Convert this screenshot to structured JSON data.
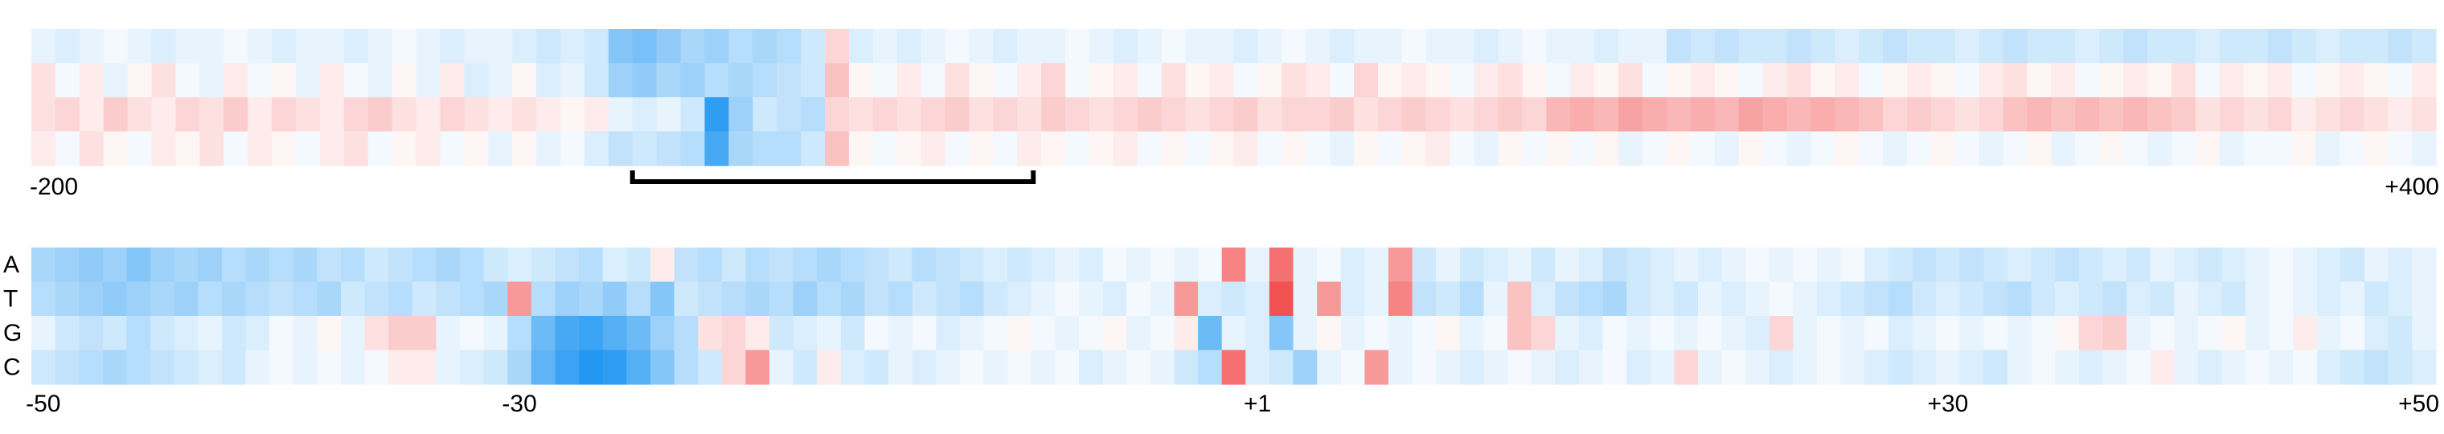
{
  "chart_data": [
    {
      "type": "heatmap",
      "xlim": [
        -200,
        400
      ],
      "xticks": [
        -200,
        {
          "value": 400,
          "label": "+400"
        }
      ],
      "zlim": [
        -1,
        1
      ],
      "colors": {
        "negative": "#0a8cf0",
        "positive": "#f03232"
      },
      "bracket": [
        -50,
        50
      ],
      "bins": [
        -200,
        -194,
        -188,
        -182,
        -176,
        -170,
        -164,
        -158,
        -152,
        -146,
        -140,
        -134,
        -128,
        -122,
        -116,
        -110,
        -104,
        -98,
        -92,
        -86,
        -80,
        -74,
        -68,
        -62,
        -56,
        -50,
        -44,
        -38,
        -32,
        -26,
        -20,
        -14,
        -8,
        -2,
        4,
        10,
        16,
        22,
        28,
        34,
        40,
        46,
        52,
        58,
        64,
        70,
        76,
        82,
        88,
        94,
        100,
        106,
        112,
        118,
        124,
        130,
        136,
        142,
        148,
        154,
        160,
        166,
        172,
        178,
        184,
        190,
        196,
        202,
        208,
        214,
        220,
        226,
        232,
        238,
        244,
        250,
        256,
        262,
        268,
        274,
        280,
        286,
        292,
        298,
        304,
        310,
        316,
        322,
        328,
        334,
        340,
        346,
        352,
        358,
        364,
        370,
        376,
        382,
        388,
        394,
        400
      ],
      "z": [
        [
          -0.1,
          -0.15,
          -0.1,
          -0.05,
          -0.1,
          -0.15,
          -0.1,
          -0.1,
          -0.05,
          -0.1,
          -0.15,
          -0.1,
          -0.1,
          -0.15,
          -0.1,
          -0.05,
          -0.1,
          -0.15,
          -0.1,
          -0.1,
          -0.15,
          -0.2,
          -0.15,
          -0.2,
          -0.5,
          -0.55,
          -0.45,
          -0.35,
          -0.4,
          -0.3,
          -0.35,
          -0.3,
          -0.2,
          0.2,
          -0.15,
          -0.1,
          -0.15,
          -0.1,
          -0.05,
          -0.1,
          -0.15,
          -0.1,
          -0.1,
          -0.05,
          -0.1,
          -0.15,
          -0.1,
          -0.05,
          -0.1,
          -0.1,
          -0.15,
          -0.1,
          -0.05,
          -0.1,
          -0.15,
          -0.1,
          -0.1,
          -0.05,
          -0.1,
          -0.1,
          -0.15,
          -0.1,
          -0.05,
          -0.1,
          -0.1,
          -0.15,
          -0.1,
          -0.1,
          -0.25,
          -0.2,
          -0.25,
          -0.2,
          -0.2,
          -0.25,
          -0.2,
          -0.15,
          -0.2,
          -0.25,
          -0.2,
          -0.2,
          -0.15,
          -0.2,
          -0.25,
          -0.2,
          -0.2,
          -0.15,
          -0.2,
          -0.25,
          -0.2,
          -0.2,
          -0.15,
          -0.2,
          -0.2,
          -0.25,
          -0.2,
          -0.15,
          -0.2,
          -0.2,
          -0.25,
          -0.2
        ],
        [
          0.15,
          -0.05,
          0.1,
          -0.1,
          0.05,
          0.15,
          -0.05,
          -0.1,
          0.1,
          -0.05,
          0.05,
          -0.1,
          0.1,
          -0.05,
          -0.1,
          0.05,
          -0.1,
          0.1,
          -0.15,
          -0.1,
          0.05,
          -0.15,
          -0.1,
          -0.2,
          -0.4,
          -0.45,
          -0.35,
          -0.4,
          -0.3,
          -0.35,
          -0.3,
          -0.25,
          -0.2,
          0.3,
          0.05,
          -0.05,
          0.1,
          -0.05,
          0.15,
          0.05,
          -0.05,
          0.1,
          0.2,
          -0.05,
          0.05,
          0.1,
          -0.05,
          0.15,
          0.05,
          0.1,
          -0.05,
          0.05,
          0.15,
          0.1,
          -0.05,
          0.2,
          0.05,
          0.1,
          0.05,
          -0.05,
          0.1,
          0.15,
          0.05,
          -0.05,
          0.1,
          0.05,
          0.15,
          -0.05,
          0.05,
          0.1,
          0.05,
          -0.05,
          0.1,
          0.15,
          0.05,
          0.1,
          -0.05,
          0.05,
          0.1,
          0.05,
          -0.05,
          0.1,
          0.15,
          0.05,
          0.1,
          -0.05,
          0.05,
          0.1,
          0.05,
          0.15,
          -0.05,
          0.1,
          0.05,
          0.1,
          -0.05,
          0.05,
          0.1,
          0.05,
          -0.05,
          0.1
        ],
        [
          0.15,
          0.2,
          0.1,
          0.25,
          0.15,
          0.1,
          0.2,
          0.15,
          0.25,
          0.1,
          0.2,
          0.15,
          0.1,
          0.2,
          0.25,
          0.15,
          0.1,
          0.2,
          0.15,
          0.1,
          0.15,
          0.1,
          0.05,
          0.1,
          -0.1,
          -0.15,
          -0.1,
          -0.2,
          -0.85,
          -0.4,
          -0.2,
          -0.25,
          -0.3,
          0.2,
          0.15,
          0.2,
          0.15,
          0.2,
          0.25,
          0.15,
          0.2,
          0.15,
          0.25,
          0.2,
          0.15,
          0.2,
          0.25,
          0.2,
          0.15,
          0.2,
          0.25,
          0.15,
          0.2,
          0.2,
          0.25,
          0.15,
          0.2,
          0.25,
          0.2,
          0.15,
          0.2,
          0.25,
          0.2,
          0.35,
          0.4,
          0.35,
          0.45,
          0.4,
          0.35,
          0.4,
          0.35,
          0.45,
          0.4,
          0.35,
          0.4,
          0.35,
          0.3,
          0.2,
          0.25,
          0.2,
          0.15,
          0.2,
          0.3,
          0.35,
          0.3,
          0.35,
          0.3,
          0.35,
          0.3,
          0.25,
          0.15,
          0.2,
          0.15,
          0.2,
          0.1,
          0.15,
          0.2,
          0.15,
          0.1,
          0.15
        ],
        [
          0.1,
          -0.05,
          0.15,
          0.05,
          -0.05,
          0.1,
          0.05,
          0.15,
          -0.05,
          0.1,
          0.05,
          -0.05,
          0.1,
          0.15,
          -0.05,
          0.05,
          0.1,
          -0.05,
          0.05,
          -0.1,
          0.05,
          -0.1,
          -0.05,
          -0.15,
          -0.25,
          -0.2,
          -0.25,
          -0.3,
          -0.75,
          -0.35,
          -0.3,
          -0.3,
          -0.2,
          0.3,
          0.05,
          -0.05,
          0.05,
          0.1,
          -0.05,
          0.05,
          -0.05,
          0.1,
          0.05,
          -0.05,
          0.05,
          0.1,
          -0.05,
          0.05,
          -0.05,
          0.05,
          0.1,
          -0.05,
          0.05,
          -0.05,
          -0.1,
          0.05,
          -0.05,
          0.05,
          0.1,
          -0.05,
          -0.1,
          0.05,
          -0.05,
          0.05,
          -0.05,
          0.05,
          -0.1,
          -0.05,
          0.05,
          -0.05,
          -0.1,
          0.05,
          -0.05,
          -0.1,
          -0.05,
          0.05,
          -0.05,
          -0.1,
          -0.05,
          0.05,
          -0.05,
          -0.1,
          -0.05,
          0.05,
          -0.1,
          -0.05,
          0.05,
          -0.05,
          -0.1,
          -0.05,
          0.05,
          -0.1,
          -0.05,
          -0.05,
          0.05,
          -0.1,
          -0.05,
          0.05,
          -0.05,
          -0.1
        ]
      ]
    },
    {
      "type": "heatmap",
      "xlim": [
        -50.5,
        50.5
      ],
      "xticks": [
        -50,
        -30,
        {
          "value": 1,
          "label": "+1"
        },
        {
          "value": 30,
          "label": "+30"
        },
        {
          "value": 50,
          "label": "+50"
        }
      ],
      "zlim": [
        -1,
        1
      ],
      "colors": {
        "negative": "#0a8cf0",
        "positive": "#f03232"
      },
      "rows": [
        "A",
        "T",
        "G",
        "C"
      ],
      "x": [
        -50,
        -49,
        -48,
        -47,
        -46,
        -45,
        -44,
        -43,
        -42,
        -41,
        -40,
        -39,
        -38,
        -37,
        -36,
        -35,
        -34,
        -33,
        -32,
        -31,
        -30,
        -29,
        -28,
        -27,
        -26,
        -25,
        -24,
        -23,
        -22,
        -21,
        -20,
        -19,
        -18,
        -17,
        -16,
        -15,
        -14,
        -13,
        -12,
        -11,
        -10,
        -9,
        -8,
        -7,
        -6,
        -5,
        -4,
        -3,
        -2,
        -1,
        0,
        1,
        2,
        3,
        4,
        5,
        6,
        7,
        8,
        9,
        10,
        11,
        12,
        13,
        14,
        15,
        16,
        17,
        18,
        19,
        20,
        21,
        22,
        23,
        24,
        25,
        26,
        27,
        28,
        29,
        30,
        31,
        32,
        33,
        34,
        35,
        36,
        37,
        38,
        39,
        40,
        41,
        42,
        43,
        44,
        45,
        46,
        47,
        48,
        49,
        50
      ],
      "z": [
        [
          -0.35,
          -0.4,
          -0.45,
          -0.4,
          -0.5,
          -0.4,
          -0.35,
          -0.4,
          -0.3,
          -0.35,
          -0.3,
          -0.35,
          -0.25,
          -0.3,
          -0.2,
          -0.25,
          -0.3,
          -0.35,
          -0.3,
          -0.2,
          -0.15,
          -0.2,
          -0.25,
          -0.3,
          -0.15,
          -0.2,
          0.1,
          -0.25,
          -0.3,
          -0.2,
          -0.3,
          -0.25,
          -0.3,
          -0.35,
          -0.3,
          -0.25,
          -0.2,
          -0.3,
          -0.25,
          -0.2,
          -0.15,
          -0.2,
          -0.15,
          -0.1,
          -0.15,
          -0.05,
          -0.1,
          -0.05,
          -0.1,
          -0.05,
          0.6,
          -0.1,
          0.7,
          -0.1,
          -0.05,
          -0.15,
          -0.1,
          0.5,
          -0.2,
          -0.1,
          -0.2,
          -0.15,
          -0.1,
          -0.2,
          -0.1,
          -0.15,
          -0.25,
          -0.2,
          -0.15,
          -0.1,
          -0.15,
          -0.1,
          -0.05,
          -0.1,
          -0.05,
          -0.1,
          -0.05,
          -0.15,
          -0.2,
          -0.25,
          -0.2,
          -0.25,
          -0.2,
          -0.15,
          -0.2,
          -0.25,
          -0.2,
          -0.15,
          -0.2,
          -0.1,
          -0.15,
          -0.2,
          -0.15,
          -0.1,
          -0.05,
          -0.1,
          -0.15,
          -0.2,
          -0.1,
          -0.15,
          -0.1
        ],
        [
          -0.3,
          -0.35,
          -0.4,
          -0.45,
          -0.4,
          -0.35,
          -0.4,
          -0.3,
          -0.35,
          -0.3,
          -0.25,
          -0.3,
          -0.35,
          -0.2,
          -0.25,
          -0.3,
          -0.2,
          -0.25,
          -0.3,
          -0.35,
          0.5,
          -0.3,
          -0.4,
          -0.35,
          -0.45,
          -0.3,
          -0.5,
          -0.2,
          -0.25,
          -0.3,
          -0.35,
          -0.3,
          -0.4,
          -0.3,
          -0.35,
          -0.25,
          -0.3,
          -0.2,
          -0.25,
          -0.3,
          -0.2,
          -0.15,
          -0.1,
          -0.05,
          -0.1,
          -0.15,
          -0.05,
          -0.1,
          0.5,
          -0.15,
          -0.2,
          -0.15,
          0.85,
          -0.1,
          0.5,
          -0.15,
          -0.1,
          0.6,
          -0.25,
          -0.2,
          -0.3,
          -0.1,
          0.3,
          -0.15,
          -0.25,
          -0.3,
          -0.35,
          -0.2,
          -0.15,
          -0.2,
          -0.1,
          -0.15,
          -0.1,
          -0.05,
          -0.1,
          -0.15,
          -0.2,
          -0.25,
          -0.3,
          -0.2,
          -0.15,
          -0.2,
          -0.25,
          -0.3,
          -0.2,
          -0.15,
          -0.2,
          -0.25,
          -0.15,
          -0.2,
          -0.1,
          -0.15,
          -0.2,
          -0.1,
          -0.05,
          -0.1,
          -0.15,
          -0.1,
          -0.2,
          -0.15,
          -0.1
        ],
        [
          -0.1,
          -0.2,
          -0.25,
          -0.2,
          -0.3,
          -0.2,
          -0.15,
          -0.1,
          -0.2,
          -0.15,
          -0.05,
          -0.1,
          0.05,
          -0.1,
          0.15,
          0.25,
          0.25,
          -0.1,
          -0.05,
          -0.1,
          -0.3,
          -0.6,
          -0.75,
          -0.8,
          -0.7,
          -0.6,
          -0.4,
          -0.3,
          0.15,
          0.2,
          0.1,
          -0.2,
          -0.15,
          -0.1,
          -0.2,
          -0.05,
          -0.1,
          -0.05,
          -0.15,
          -0.1,
          -0.05,
          0.05,
          -0.05,
          -0.1,
          -0.05,
          0.05,
          -0.1,
          -0.05,
          0.1,
          -0.6,
          -0.1,
          -0.15,
          -0.5,
          -0.1,
          0.05,
          -0.1,
          -0.05,
          -0.1,
          -0.05,
          0.05,
          -0.1,
          -0.05,
          0.3,
          0.2,
          -0.1,
          -0.15,
          -0.05,
          -0.1,
          -0.05,
          -0.1,
          -0.05,
          -0.1,
          -0.15,
          0.2,
          -0.1,
          -0.05,
          -0.1,
          -0.05,
          -0.15,
          -0.1,
          -0.05,
          -0.1,
          -0.05,
          -0.1,
          -0.05,
          0.05,
          0.2,
          0.25,
          -0.1,
          -0.05,
          -0.1,
          -0.05,
          0.05,
          -0.1,
          -0.05,
          0.1,
          -0.1,
          -0.05,
          -0.15,
          -0.2,
          -0.1
        ],
        [
          -0.2,
          -0.25,
          -0.3,
          -0.35,
          -0.3,
          -0.25,
          -0.2,
          -0.15,
          -0.2,
          -0.1,
          -0.05,
          -0.1,
          -0.05,
          -0.1,
          -0.05,
          0.1,
          0.1,
          -0.1,
          -0.15,
          -0.2,
          -0.35,
          -0.65,
          -0.8,
          -0.9,
          -0.85,
          -0.7,
          -0.5,
          -0.3,
          -0.2,
          0.2,
          0.5,
          -0.1,
          -0.2,
          0.1,
          -0.15,
          -0.2,
          -0.1,
          -0.15,
          -0.1,
          -0.05,
          -0.1,
          -0.05,
          -0.1,
          -0.05,
          -0.15,
          -0.1,
          -0.05,
          -0.1,
          -0.2,
          -0.3,
          0.7,
          -0.15,
          -0.2,
          -0.4,
          -0.1,
          -0.05,
          0.5,
          -0.1,
          -0.05,
          -0.1,
          -0.15,
          -0.1,
          -0.05,
          -0.1,
          -0.15,
          -0.1,
          -0.05,
          -0.15,
          -0.1,
          0.2,
          -0.1,
          -0.05,
          -0.1,
          -0.15,
          -0.1,
          -0.05,
          -0.1,
          -0.15,
          -0.2,
          -0.15,
          -0.1,
          -0.15,
          -0.2,
          -0.1,
          -0.05,
          -0.1,
          -0.15,
          -0.1,
          -0.05,
          0.1,
          -0.1,
          -0.15,
          -0.1,
          -0.05,
          -0.1,
          -0.05,
          -0.15,
          -0.2,
          -0.25,
          -0.2,
          -0.15
        ]
      ]
    }
  ]
}
